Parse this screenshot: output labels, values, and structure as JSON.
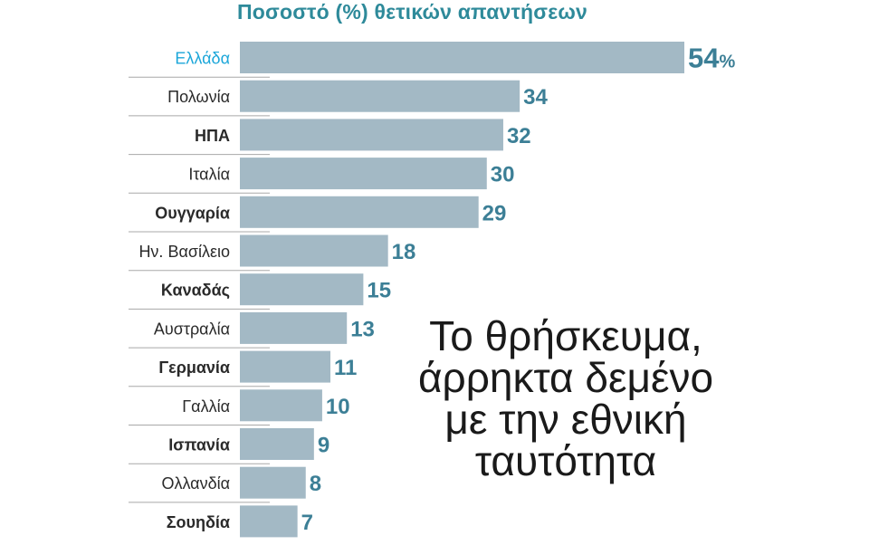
{
  "chart_data": {
    "type": "bar",
    "orientation": "horizontal",
    "title": "Ποσοστό (%) θετικών απαντήσεων",
    "categories": [
      "Ελλάδα",
      "Πολωνία",
      "ΗΠΑ",
      "Ιταλία",
      "Ουγγαρία",
      "Ην. Βασίλειο",
      "Καναδάς",
      "Αυστραλία",
      "Γερμανία",
      "Γαλλία",
      "Ισπανία",
      "Ολλανδία",
      "Σουηδία"
    ],
    "values": [
      54,
      34,
      32,
      30,
      29,
      18,
      15,
      13,
      11,
      10,
      9,
      8,
      7
    ],
    "value_labels": [
      "54",
      "34",
      "32",
      "30",
      "29",
      "18",
      "15",
      "13",
      "11",
      "10",
      "9",
      "8",
      "7"
    ],
    "first_value_suffix": "%",
    "bold_labels": [
      false,
      false,
      true,
      false,
      true,
      false,
      true,
      false,
      true,
      false,
      true,
      false,
      true
    ],
    "highlight_index": 0,
    "colors": {
      "bar": "#a3b9c5",
      "value": "#3c7f96",
      "highlight_label": "#1ba6d9",
      "label": "#2a2a2a",
      "separator": "#a8a8a8"
    }
  },
  "headline": [
    "Το θρήσκευμα,",
    "άρρηκτα δεμένο",
    "με την εθνική",
    "ταυτότητα"
  ]
}
